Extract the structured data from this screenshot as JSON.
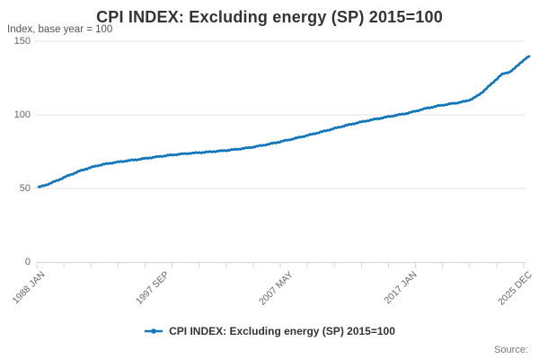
{
  "header": {
    "title": "CPI INDEX: Excluding energy (SP) 2015=100",
    "y_axis_title": "Index, base year = 100"
  },
  "legend": {
    "label": "CPI INDEX: Excluding energy (SP) 2015=100"
  },
  "footer": {
    "source_label": "Source:"
  },
  "colors": {
    "line": "#1076bc",
    "grid": "#e6e6e6",
    "axis": "#ccd6eb",
    "title_text": "#333333",
    "axis_text": "#666666"
  },
  "chart_data": {
    "type": "line",
    "title": "CPI INDEX: Excluding energy (SP) 2015=100",
    "ylabel": "Index, base year = 100",
    "xlabel": "",
    "x_unit": "months since 1988 JAN (monthly series, 1988 JAN - 2025 DEC)",
    "x_range_months": [
      0,
      455
    ],
    "ylim": [
      0,
      150
    ],
    "y_ticks": [
      {
        "value": 0,
        "label": "0"
      },
      {
        "value": 50,
        "label": "50"
      },
      {
        "value": 100,
        "label": "100"
      },
      {
        "value": 150,
        "label": "150"
      }
    ],
    "x_tick_labels": [
      {
        "month": 0,
        "label": "1988 JAN"
      },
      {
        "month": 116,
        "label": "1997 SEP"
      },
      {
        "month": 232,
        "label": "2007 MAY"
      },
      {
        "month": 348,
        "label": "2017 JAN"
      },
      {
        "month": 455,
        "label": "2025 DEC"
      }
    ],
    "minor_tick_count": 19,
    "grid": "horizontal",
    "legend_position": "bottom",
    "series": [
      {
        "name": "CPI INDEX: Excluding energy (SP) 2015=100",
        "color": "#1076bc",
        "anchors_month_value": [
          [
            0,
            50.9
          ],
          [
            6,
            52.1
          ],
          [
            12,
            53.9
          ],
          [
            18,
            55.6
          ],
          [
            24,
            57.7
          ],
          [
            30,
            59.4
          ],
          [
            36,
            61.3
          ],
          [
            42,
            62.8
          ],
          [
            48,
            64.2
          ],
          [
            54,
            65.4
          ],
          [
            60,
            66.4
          ],
          [
            66,
            67.1
          ],
          [
            72,
            67.8
          ],
          [
            78,
            68.4
          ],
          [
            84,
            69.0
          ],
          [
            90,
            69.5
          ],
          [
            96,
            70.1
          ],
          [
            102,
            70.7
          ],
          [
            108,
            71.3
          ],
          [
            116,
            72.1
          ],
          [
            124,
            72.8
          ],
          [
            132,
            73.4
          ],
          [
            140,
            73.9
          ],
          [
            148,
            74.3
          ],
          [
            156,
            74.7
          ],
          [
            164,
            75.2
          ],
          [
            172,
            75.7
          ],
          [
            180,
            76.3
          ],
          [
            188,
            77.0
          ],
          [
            196,
            77.8
          ],
          [
            204,
            78.8
          ],
          [
            212,
            79.9
          ],
          [
            220,
            81.1
          ],
          [
            228,
            82.4
          ],
          [
            236,
            83.7
          ],
          [
            244,
            85.1
          ],
          [
            252,
            86.5
          ],
          [
            260,
            88.0
          ],
          [
            268,
            89.5
          ],
          [
            276,
            91.1
          ],
          [
            284,
            92.6
          ],
          [
            292,
            94.0
          ],
          [
            300,
            95.3
          ],
          [
            308,
            96.5
          ],
          [
            316,
            97.6
          ],
          [
            324,
            98.7
          ],
          [
            330,
            99.5
          ],
          [
            336,
            100.3
          ],
          [
            342,
            101.1
          ],
          [
            348,
            102.2
          ],
          [
            354,
            103.4
          ],
          [
            360,
            104.5
          ],
          [
            366,
            105.4
          ],
          [
            372,
            106.3
          ],
          [
            378,
            107.0
          ],
          [
            384,
            107.7
          ],
          [
            390,
            108.4
          ],
          [
            396,
            109.3
          ],
          [
            400,
            110.2
          ],
          [
            404,
            111.6
          ],
          [
            408,
            113.4
          ],
          [
            412,
            115.7
          ],
          [
            416,
            118.3
          ],
          [
            420,
            121.0
          ],
          [
            424,
            123.8
          ],
          [
            427,
            125.8
          ],
          [
            430,
            127.6
          ],
          [
            434,
            128.6
          ],
          [
            437,
            129.2
          ],
          [
            440,
            130.6
          ],
          [
            443,
            132.6
          ],
          [
            446,
            134.8
          ],
          [
            449,
            136.6
          ],
          [
            452,
            138.2
          ],
          [
            453,
            138.8
          ],
          [
            454,
            139.0
          ],
          [
            455,
            139.9
          ]
        ]
      }
    ]
  }
}
